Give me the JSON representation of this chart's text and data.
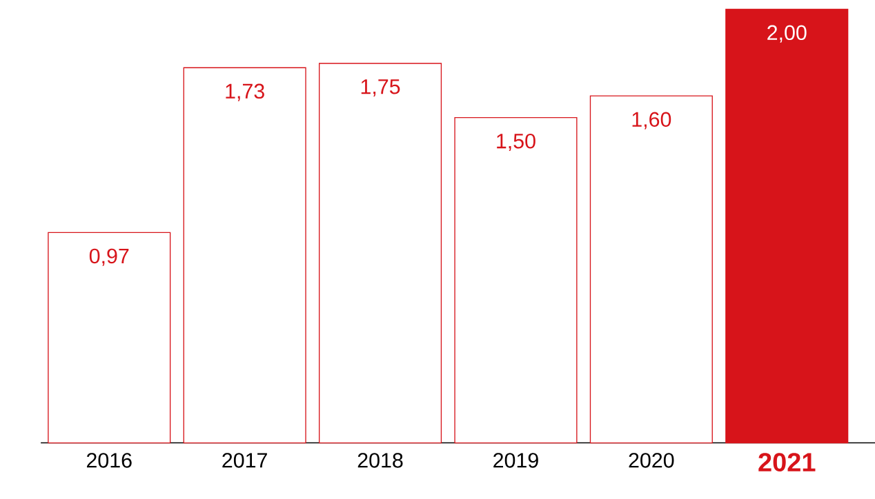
{
  "chart_data": {
    "type": "bar",
    "categories": [
      "2016",
      "2017",
      "2018",
      "2019",
      "2020",
      "2021"
    ],
    "values": [
      0.97,
      1.73,
      1.75,
      1.5,
      1.6,
      2.0
    ],
    "value_labels": [
      "0,97",
      "1,73",
      "1,75",
      "1,50",
      "1,60",
      "2,00"
    ],
    "color": "#d7141a",
    "colors": [
      "#ffffff",
      "#ffffff",
      "#ffffff",
      "#ffffff",
      "#ffffff",
      "#d7141a"
    ],
    "grid": false
  }
}
